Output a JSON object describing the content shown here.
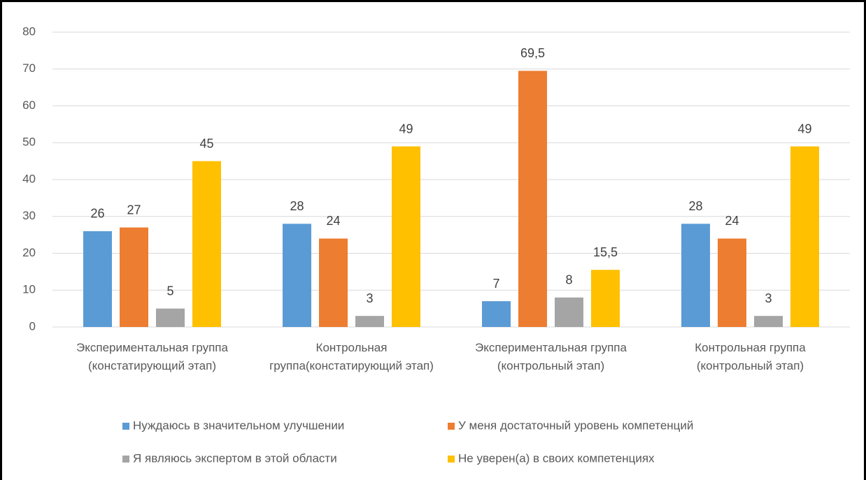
{
  "chart_data": {
    "type": "bar",
    "categories": [
      "Экспериментальная группа (констатирующий этап)",
      "Контрольная группа(констатирующий этап)",
      "Экспериментальная группа (контрольный этап)",
      "Контрольная группа (контрольный этап)"
    ],
    "series": [
      {
        "name": "Нуждаюсь в значительном улучшении",
        "color": "#5b9bd5",
        "values": [
          26,
          28,
          7,
          28
        ],
        "value_labels": [
          "26",
          "28",
          "7",
          "28"
        ]
      },
      {
        "name": "У меня достаточный уровень компетенций",
        "color": "#ed7d31",
        "values": [
          27,
          24,
          69.5,
          24
        ],
        "value_labels": [
          "27",
          "24",
          "69,5",
          "24"
        ]
      },
      {
        "name": "Я являюсь экспертом в этой области",
        "color": "#a5a5a5",
        "values": [
          5,
          3,
          8,
          3
        ],
        "value_labels": [
          "5",
          "3",
          "8",
          "3"
        ]
      },
      {
        "name": "Не уверен(а) в своих компетенциях",
        "color": "#ffc000",
        "values": [
          45,
          49,
          15.5,
          49
        ],
        "value_labels": [
          "45",
          "49",
          "15,5",
          "49"
        ]
      }
    ],
    "ylim": [
      0,
      80
    ],
    "yticks": [
      0,
      10,
      20,
      30,
      40,
      50,
      60,
      70,
      80
    ],
    "grid": true,
    "legend": "bottom"
  }
}
